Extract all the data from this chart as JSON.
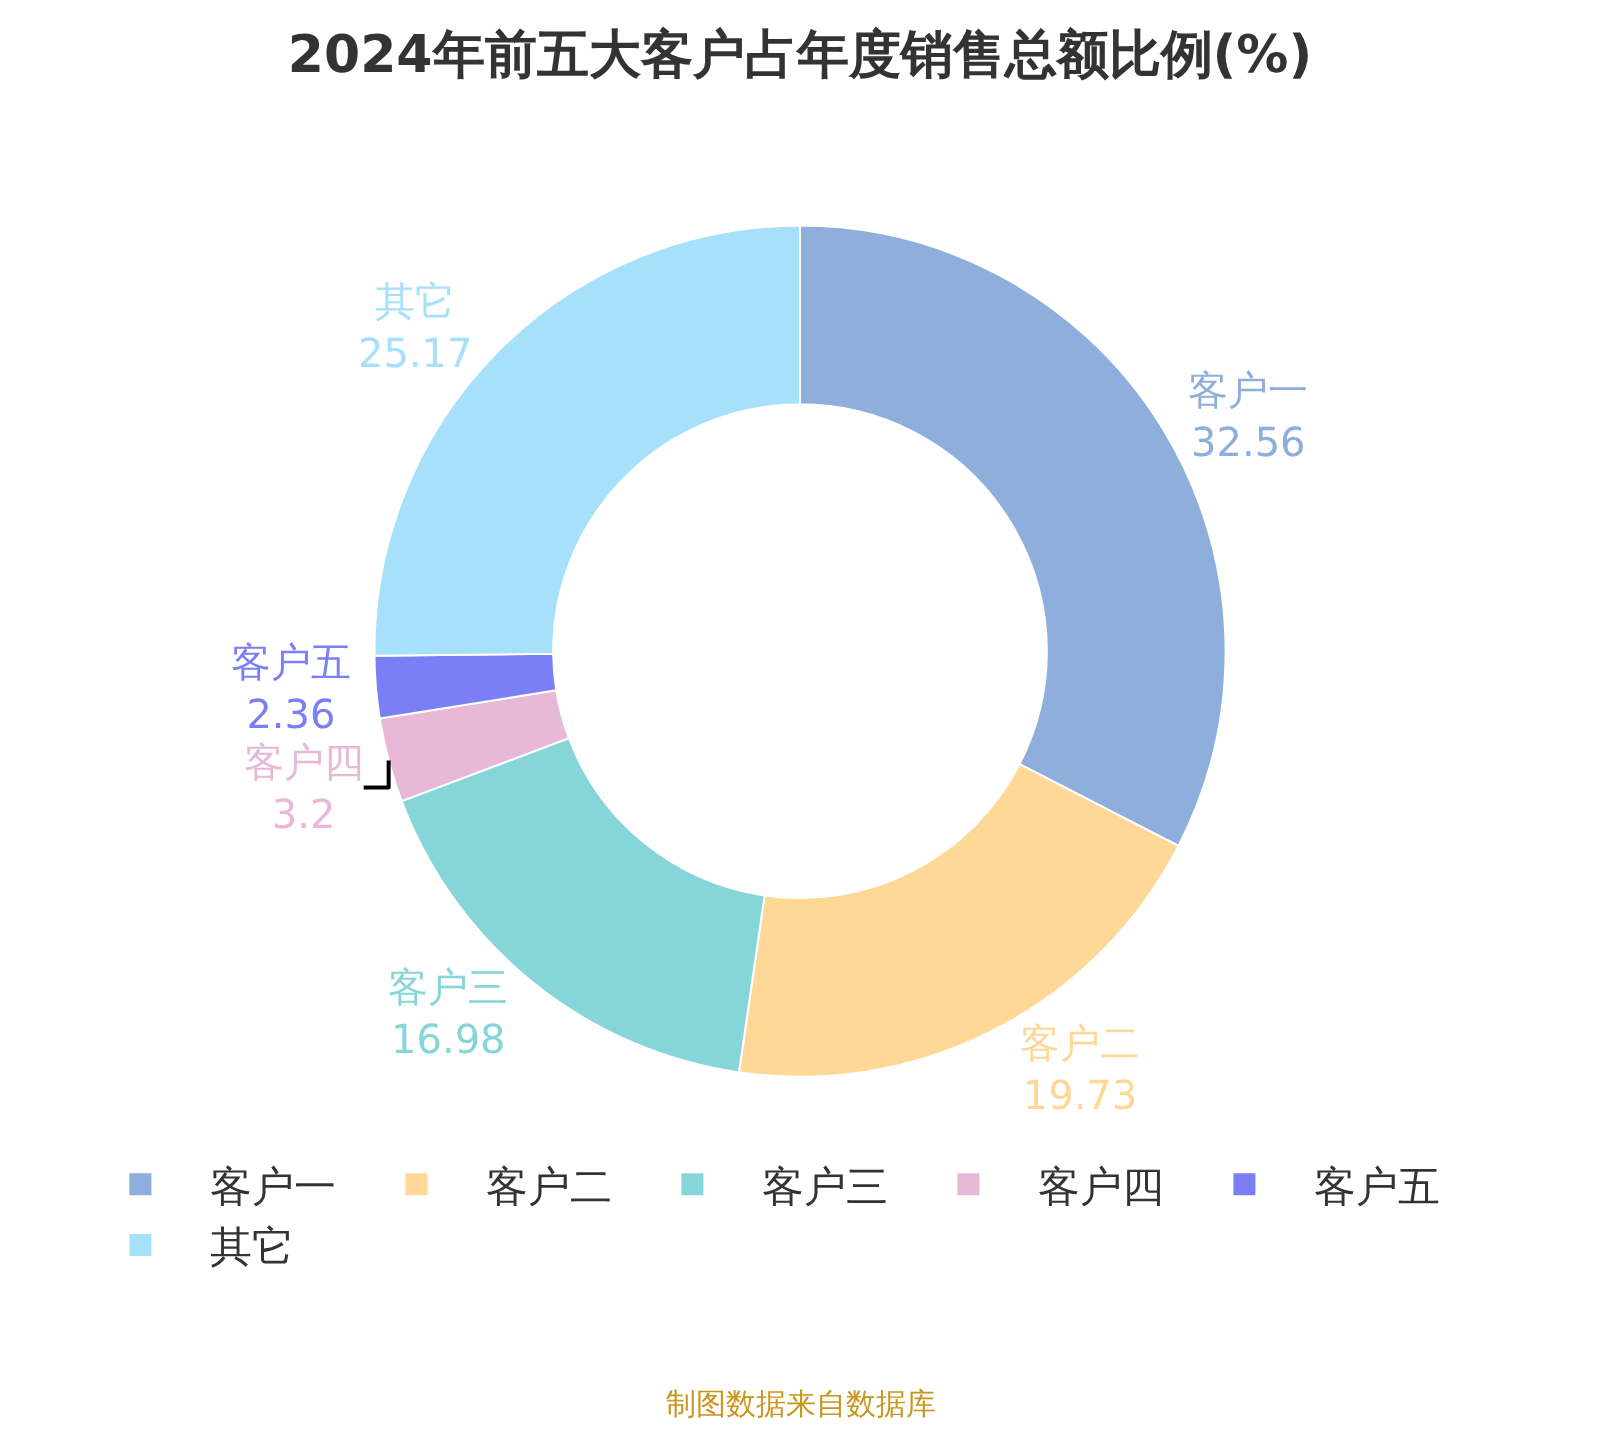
{
  "chart_data": {
    "type": "donut",
    "title": "2024年前五大客户占年度销售总额比例(%)",
    "categories": [
      "客户一",
      "客户二",
      "客户三",
      "客户四",
      "客户五",
      "其它"
    ],
    "values": [
      32.56,
      19.73,
      16.98,
      3.2,
      2.36,
      25.17
    ],
    "colors": [
      "#8eaedb",
      "#ffd898",
      "#86d5d8",
      "#e8b8d8",
      "#7b7ff5",
      "#a7e0fa"
    ],
    "data_labels": true,
    "legend": "bottom",
    "annotations": [
      "制图数据来自数据库"
    ]
  }
}
